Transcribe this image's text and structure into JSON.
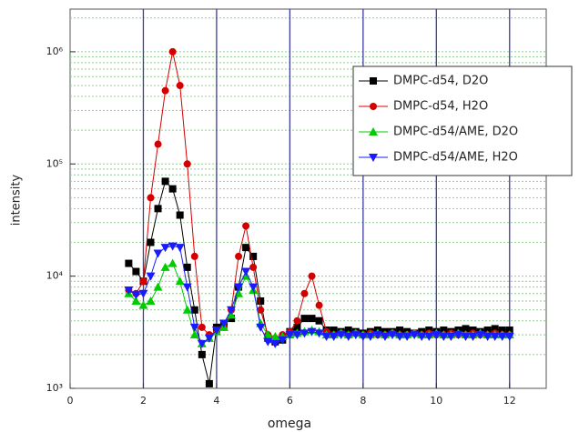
{
  "chart_data": {
    "type": "line",
    "log_y": true,
    "grid": true,
    "minor_grid": true,
    "legend": "upper right",
    "xlabel": "omega",
    "ylabel": "intensity",
    "xlim": [
      0,
      13
    ],
    "xticks": [
      0,
      2,
      4,
      6,
      8,
      10,
      12
    ],
    "ylim": [
      1000,
      2400000
    ],
    "yticks": [
      {
        "value": 1000,
        "label": "10³"
      },
      {
        "value": 10000,
        "label": "10⁴"
      },
      {
        "value": 100000,
        "label": "10⁵"
      },
      {
        "value": 1000000,
        "label": "10⁶"
      }
    ],
    "x": [
      1.6,
      1.8,
      2.0,
      2.2,
      2.4,
      2.6,
      2.8,
      3.0,
      3.2,
      3.4,
      3.6,
      3.8,
      4.0,
      4.2,
      4.4,
      4.6,
      4.8,
      5.0,
      5.2,
      5.4,
      5.6,
      5.8,
      6.0,
      6.2,
      6.4,
      6.6,
      6.8,
      7.0,
      7.2,
      7.4,
      7.6,
      7.8,
      8.0,
      8.2,
      8.4,
      8.6,
      8.8,
      9.0,
      9.2,
      9.4,
      9.6,
      9.8,
      10.0,
      10.2,
      10.4,
      10.6,
      10.8,
      11.0,
      11.2,
      11.4,
      11.6,
      11.8,
      12.0
    ],
    "series": [
      {
        "name": "DMPC-d54, D2O",
        "color": "#000000",
        "marker": "square",
        "values": [
          13000,
          11000,
          9000,
          20000,
          40000,
          70000,
          60000,
          35000,
          12000,
          5000,
          2000,
          1100,
          3500,
          3800,
          4200,
          8000,
          18000,
          15000,
          6000,
          2800,
          2600,
          2700,
          3200,
          3500,
          4200,
          4200,
          4000,
          3300,
          3300,
          3200,
          3300,
          3200,
          3100,
          3200,
          3300,
          3200,
          3200,
          3300,
          3200,
          3100,
          3200,
          3300,
          3200,
          3300,
          3200,
          3300,
          3400,
          3300,
          3200,
          3300,
          3400,
          3300,
          3300
        ]
      },
      {
        "name": "DMPC-d54, H2O",
        "color": "#d40000",
        "marker": "circle",
        "values": [
          7500,
          7000,
          9000,
          50000,
          150000,
          450000,
          1000000,
          500000,
          100000,
          15000,
          3500,
          3000,
          3200,
          3500,
          5000,
          15000,
          28000,
          12000,
          5000,
          3000,
          2800,
          3000,
          3200,
          4000,
          7000,
          10000,
          5500,
          3200,
          3000,
          3100,
          3000,
          3100,
          3000,
          3100,
          3000,
          3000,
          3100,
          3000,
          3000,
          3100,
          3000,
          3100,
          3000,
          3000,
          3100,
          3000,
          3000,
          3100,
          3000,
          3000,
          3100,
          3000,
          3000
        ]
      },
      {
        "name": "DMPC-d54/AME, D2O",
        "color": "#00cc00",
        "marker": "triangle-up",
        "values": [
          7000,
          6000,
          5500,
          6000,
          8000,
          12000,
          13000,
          9000,
          5000,
          3000,
          2500,
          2800,
          3200,
          3500,
          4500,
          7000,
          10000,
          7500,
          3800,
          3000,
          2900,
          2900,
          3000,
          3100,
          3200,
          3300,
          3200,
          3000,
          3000,
          3100,
          3000,
          3100,
          3000,
          3000,
          3100,
          3000,
          3100,
          3000,
          3000,
          3100,
          3000,
          3000,
          3100,
          3000,
          3000,
          3100,
          3000,
          3000,
          3100,
          3000,
          3000,
          3000,
          3000
        ]
      },
      {
        "name": "DMPC-d54/AME, H2O",
        "color": "#1a1aff",
        "marker": "triangle-down",
        "values": [
          7500,
          6800,
          7000,
          10000,
          16000,
          18000,
          18500,
          18000,
          8000,
          3500,
          2500,
          2800,
          3300,
          3800,
          5000,
          8000,
          11000,
          8000,
          3500,
          2600,
          2500,
          2700,
          3000,
          3000,
          3100,
          3200,
          3100,
          2900,
          2900,
          3000,
          2900,
          3000,
          2900,
          2900,
          3000,
          2900,
          3000,
          2900,
          2900,
          3000,
          2900,
          2900,
          3000,
          2900,
          2900,
          3000,
          2900,
          2900,
          3000,
          2900,
          2900,
          2900,
          2900
        ]
      }
    ]
  }
}
